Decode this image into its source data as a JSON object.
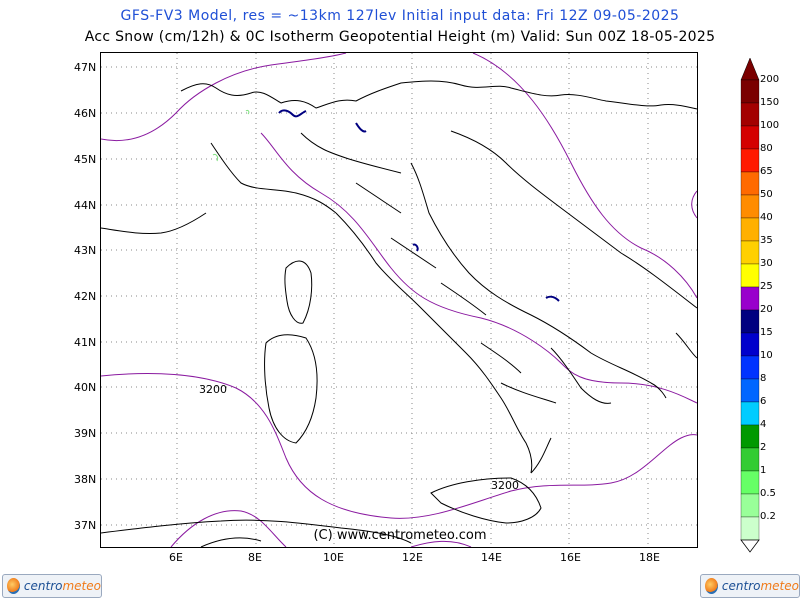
{
  "header": {
    "line1": "GFS-FV3 Model, res = ~13km 127lev    Initial input data: Fri 12Z 09-05-2025",
    "line2": "Acc Snow (cm/12h) & 0C Isotherm Geopotential Height (m)  Valid: Sun 00Z 18-05-2025"
  },
  "axes": {
    "latitudes": [
      "47N",
      "46N",
      "45N",
      "44N",
      "43N",
      "42N",
      "41N",
      "40N",
      "39N",
      "38N",
      "37N"
    ],
    "longitudes": [
      "6E",
      "8E",
      "10E",
      "12E",
      "14E",
      "16E",
      "18E"
    ]
  },
  "contours": {
    "label_left": "3200",
    "label_south": "3200"
  },
  "legend": {
    "levels": [
      "200",
      "150",
      "100",
      "80",
      "65",
      "50",
      "40",
      "35",
      "30",
      "25",
      "20",
      "15",
      "10",
      "8",
      "6",
      "4",
      "2",
      "1",
      "0.5",
      "0.2"
    ],
    "colors": [
      "#7a0000",
      "#a30000",
      "#d40000",
      "#ff1a00",
      "#ff6a00",
      "#ff8c00",
      "#ffb000",
      "#ffd000",
      "#ffff00",
      "#9900cc",
      "#000080",
      "#0000cc",
      "#0033ff",
      "#0066ff",
      "#00ccff",
      "#009900",
      "#33cc33",
      "#66ff66",
      "#99ff99",
      "#ccffcc"
    ]
  },
  "copyright": "(C) www.centrometeo.com",
  "logos": {
    "left_text_a": "centro",
    "left_text_b": "meteo",
    "right_text_a": "centro",
    "right_text_b": "meteo"
  }
}
